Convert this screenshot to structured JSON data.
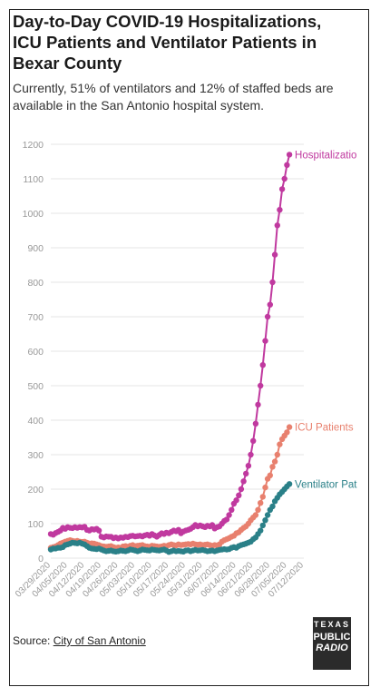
{
  "header": {
    "title": "Day-to-Day COVID-19 Hospitalizations, ICU Patients and Ventilator Patients in Bexar County",
    "subtitle": "Currently, 51% of ventilators and 12% of staffed beds are available in the San Antonio hospital system."
  },
  "footer": {
    "source_prefix": "Source: ",
    "source_link": "City of San Antonio"
  },
  "logo": {
    "line1": "TEXAS",
    "line2": "PUBLIC",
    "line3": "RADIO"
  },
  "colors": {
    "hospitalizations": "#c0399f",
    "icu": "#e8806e",
    "ventilator": "#2a8088",
    "grid": "#e6e6e6",
    "axis_text": "#999999"
  },
  "chart_data": {
    "type": "line",
    "title": "Day-to-Day COVID-19 Hospitalizations, ICU Patients and Ventilator Patients in Bexar County",
    "x_start": "2020-03-29",
    "x_end": "2020-07-12",
    "ylim": [
      0,
      1200
    ],
    "yticks": [
      0,
      100,
      200,
      300,
      400,
      500,
      600,
      700,
      800,
      900,
      1000,
      1100,
      1200
    ],
    "xticks": [
      "03/29/2020",
      "04/05/2020",
      "04/12/2020",
      "04/19/2020",
      "04/26/2020",
      "05/03/2020",
      "05/10/2020",
      "05/17/2020",
      "05/24/2020",
      "05/31/2020",
      "06/07/2020",
      "06/14/2020",
      "06/21/2020",
      "06/28/2020",
      "07/05/2020",
      "07/12/2020"
    ],
    "grid": true,
    "series": [
      {
        "name": "Hospitalizations",
        "label": "Hospitalizatio",
        "color": "#c0399f",
        "x": [
          "2020-03-29",
          "2020-03-30",
          "2020-03-31",
          "2020-04-01",
          "2020-04-02",
          "2020-04-03",
          "2020-04-04",
          "2020-04-05",
          "2020-04-06",
          "2020-04-07",
          "2020-04-08",
          "2020-04-09",
          "2020-04-10",
          "2020-04-11",
          "2020-04-12",
          "2020-04-13",
          "2020-04-14",
          "2020-04-15",
          "2020-04-16",
          "2020-04-17",
          "2020-04-18",
          "2020-04-19",
          "2020-04-20",
          "2020-04-21",
          "2020-04-22",
          "2020-04-23",
          "2020-04-24",
          "2020-04-25",
          "2020-04-26",
          "2020-04-27",
          "2020-04-28",
          "2020-04-29",
          "2020-04-30",
          "2020-05-01",
          "2020-05-02",
          "2020-05-03",
          "2020-05-04",
          "2020-05-05",
          "2020-05-06",
          "2020-05-07",
          "2020-05-08",
          "2020-05-09",
          "2020-05-10",
          "2020-05-11",
          "2020-05-12",
          "2020-05-13",
          "2020-05-14",
          "2020-05-15",
          "2020-05-16",
          "2020-05-17",
          "2020-05-18",
          "2020-05-19",
          "2020-05-20",
          "2020-05-21",
          "2020-05-22",
          "2020-05-23",
          "2020-05-24",
          "2020-05-25",
          "2020-05-26",
          "2020-05-27",
          "2020-05-28",
          "2020-05-29",
          "2020-05-30",
          "2020-05-31",
          "2020-06-01",
          "2020-06-02",
          "2020-06-03",
          "2020-06-04",
          "2020-06-05",
          "2020-06-06",
          "2020-06-07",
          "2020-06-08",
          "2020-06-09",
          "2020-06-10",
          "2020-06-11",
          "2020-06-12",
          "2020-06-13",
          "2020-06-14",
          "2020-06-15",
          "2020-06-16",
          "2020-06-17",
          "2020-06-18",
          "2020-06-19",
          "2020-06-20",
          "2020-06-21",
          "2020-06-22",
          "2020-06-23",
          "2020-06-24",
          "2020-06-25",
          "2020-06-26",
          "2020-06-27",
          "2020-06-28",
          "2020-06-29",
          "2020-06-30",
          "2020-07-01",
          "2020-07-02",
          "2020-07-03",
          "2020-07-04",
          "2020-07-05",
          "2020-07-06"
        ],
        "values": [
          70,
          68,
          73,
          76,
          80,
          88,
          85,
          90,
          88,
          87,
          90,
          88,
          90,
          89,
          91,
          82,
          80,
          84,
          83,
          85,
          80,
          62,
          60,
          63,
          62,
          62,
          58,
          60,
          57,
          60,
          59,
          62,
          61,
          64,
          65,
          63,
          64,
          65,
          63,
          66,
          68,
          65,
          70,
          66,
          62,
          67,
          72,
          70,
          74,
          72,
          76,
          80,
          78,
          82,
          72,
          77,
          80,
          82,
          85,
          90,
          96,
          92,
          95,
          92,
          90,
          94,
          92,
          96,
          86,
          90,
          92,
          100,
          108,
          112,
          125,
          140,
          158,
          168,
          182,
          200,
          223,
          245,
          268,
          300,
          340,
          390,
          445,
          500,
          560,
          630,
          700,
          735,
          800,
          880,
          965,
          1010,
          1070,
          1100,
          1140,
          1170
        ]
      },
      {
        "name": "ICU Patients",
        "label": "ICU Patients",
        "color": "#e8806e",
        "x": [
          "2020-03-29",
          "2020-03-30",
          "2020-03-31",
          "2020-04-01",
          "2020-04-02",
          "2020-04-03",
          "2020-04-04",
          "2020-04-05",
          "2020-04-06",
          "2020-04-07",
          "2020-04-08",
          "2020-04-09",
          "2020-04-10",
          "2020-04-11",
          "2020-04-12",
          "2020-04-13",
          "2020-04-14",
          "2020-04-15",
          "2020-04-16",
          "2020-04-17",
          "2020-04-18",
          "2020-04-19",
          "2020-04-20",
          "2020-04-21",
          "2020-04-22",
          "2020-04-23",
          "2020-04-24",
          "2020-04-25",
          "2020-04-26",
          "2020-04-27",
          "2020-04-28",
          "2020-04-29",
          "2020-04-30",
          "2020-05-01",
          "2020-05-02",
          "2020-05-03",
          "2020-05-04",
          "2020-05-05",
          "2020-05-06",
          "2020-05-07",
          "2020-05-08",
          "2020-05-09",
          "2020-05-10",
          "2020-05-11",
          "2020-05-12",
          "2020-05-13",
          "2020-05-14",
          "2020-05-15",
          "2020-05-16",
          "2020-05-17",
          "2020-05-18",
          "2020-05-19",
          "2020-05-20",
          "2020-05-21",
          "2020-05-22",
          "2020-05-23",
          "2020-05-24",
          "2020-05-25",
          "2020-05-26",
          "2020-05-27",
          "2020-05-28",
          "2020-05-29",
          "2020-05-30",
          "2020-05-31",
          "2020-06-01",
          "2020-06-02",
          "2020-06-03",
          "2020-06-04",
          "2020-06-05",
          "2020-06-06",
          "2020-06-07",
          "2020-06-08",
          "2020-06-09",
          "2020-06-10",
          "2020-06-11",
          "2020-06-12",
          "2020-06-13",
          "2020-06-14",
          "2020-06-15",
          "2020-06-16",
          "2020-06-17",
          "2020-06-18",
          "2020-06-19",
          "2020-06-20",
          "2020-06-21",
          "2020-06-22",
          "2020-06-23",
          "2020-06-24",
          "2020-06-25",
          "2020-06-26",
          "2020-06-27",
          "2020-06-28",
          "2020-06-29",
          "2020-06-30",
          "2020-07-01",
          "2020-07-02",
          "2020-07-03",
          "2020-07-04",
          "2020-07-05",
          "2020-07-06"
        ],
        "values": [
          30,
          32,
          34,
          38,
          42,
          45,
          48,
          50,
          52,
          50,
          49,
          50,
          48,
          47,
          48,
          45,
          42,
          43,
          42,
          40,
          38,
          35,
          34,
          33,
          34,
          35,
          32,
          30,
          31,
          30,
          34,
          35,
          33,
          36,
          38,
          35,
          36,
          37,
          38,
          35,
          34,
          33,
          36,
          35,
          34,
          33,
          34,
          36,
          35,
          38,
          40,
          38,
          37,
          40,
          38,
          39,
          40,
          41,
          40,
          42,
          40,
          39,
          40,
          38,
          39,
          40,
          38,
          36,
          38,
          37,
          40,
          48,
          52,
          55,
          58,
          62,
          65,
          72,
          75,
          82,
          88,
          92,
          100,
          110,
          118,
          125,
          140,
          160,
          178,
          205,
          230,
          240,
          265,
          280,
          300,
          330,
          345,
          355,
          365,
          380
        ]
      },
      {
        "name": "Ventilator Patients",
        "label": "Ventilator Pat",
        "color": "#2a8088",
        "x": [
          "2020-03-29",
          "2020-03-30",
          "2020-03-31",
          "2020-04-01",
          "2020-04-02",
          "2020-04-03",
          "2020-04-04",
          "2020-04-05",
          "2020-04-06",
          "2020-04-07",
          "2020-04-08",
          "2020-04-09",
          "2020-04-10",
          "2020-04-11",
          "2020-04-12",
          "2020-04-13",
          "2020-04-14",
          "2020-04-15",
          "2020-04-16",
          "2020-04-17",
          "2020-04-18",
          "2020-04-19",
          "2020-04-20",
          "2020-04-21",
          "2020-04-22",
          "2020-04-23",
          "2020-04-24",
          "2020-04-25",
          "2020-04-26",
          "2020-04-27",
          "2020-04-28",
          "2020-04-29",
          "2020-04-30",
          "2020-05-01",
          "2020-05-02",
          "2020-05-03",
          "2020-05-04",
          "2020-05-05",
          "2020-05-06",
          "2020-05-07",
          "2020-05-08",
          "2020-05-09",
          "2020-05-10",
          "2020-05-11",
          "2020-05-12",
          "2020-05-13",
          "2020-05-14",
          "2020-05-15",
          "2020-05-16",
          "2020-05-17",
          "2020-05-18",
          "2020-05-19",
          "2020-05-20",
          "2020-05-21",
          "2020-05-22",
          "2020-05-23",
          "2020-05-24",
          "2020-05-25",
          "2020-05-26",
          "2020-05-27",
          "2020-05-28",
          "2020-05-29",
          "2020-05-30",
          "2020-05-31",
          "2020-06-01",
          "2020-06-02",
          "2020-06-03",
          "2020-06-04",
          "2020-06-05",
          "2020-06-06",
          "2020-06-07",
          "2020-06-08",
          "2020-06-09",
          "2020-06-10",
          "2020-06-11",
          "2020-06-12",
          "2020-06-13",
          "2020-06-14",
          "2020-06-15",
          "2020-06-16",
          "2020-06-17",
          "2020-06-18",
          "2020-06-19",
          "2020-06-20",
          "2020-06-21",
          "2020-06-22",
          "2020-06-23",
          "2020-06-24",
          "2020-06-25",
          "2020-06-26",
          "2020-06-27",
          "2020-06-28",
          "2020-06-29",
          "2020-06-30",
          "2020-07-01",
          "2020-07-02",
          "2020-07-03",
          "2020-07-04",
          "2020-07-05",
          "2020-07-06"
        ],
        "values": [
          25,
          28,
          28,
          30,
          30,
          32,
          38,
          40,
          42,
          45,
          44,
          43,
          45,
          42,
          40,
          35,
          30,
          28,
          27,
          26,
          28,
          25,
          22,
          20,
          21,
          22,
          20,
          19,
          20,
          22,
          21,
          20,
          22,
          25,
          24,
          22,
          20,
          22,
          25,
          24,
          23,
          22,
          25,
          24,
          23,
          22,
          24,
          25,
          22,
          18,
          20,
          22,
          20,
          21,
          20,
          19,
          22,
          23,
          20,
          22,
          24,
          22,
          23,
          24,
          22,
          20,
          21,
          22,
          20,
          22,
          24,
          25,
          26,
          25,
          26,
          30,
          32,
          30,
          35,
          38,
          40,
          42,
          45,
          48,
          55,
          60,
          70,
          80,
          95,
          110,
          125,
          140,
          150,
          165,
          175,
          185,
          192,
          200,
          208,
          215
        ]
      }
    ]
  }
}
